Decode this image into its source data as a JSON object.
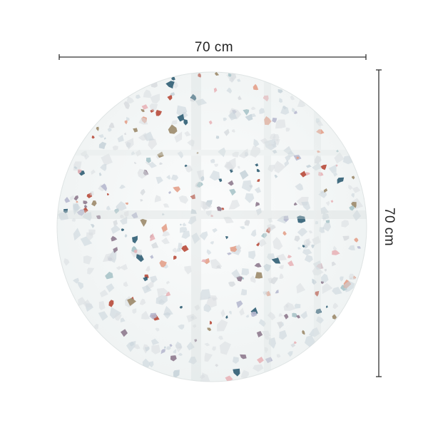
{
  "product": {
    "width_label": "70 cm",
    "height_label": "70 cm",
    "pattern": "terrazzo",
    "palette": [
      "#2f5d73",
      "#b84a3a",
      "#e8b4b8",
      "#9c8a6a",
      "#8e7a8e",
      "#a9c4c9",
      "#d9dde0",
      "#c8d4da",
      "#e3a08a",
      "#b7b9cf"
    ]
  }
}
